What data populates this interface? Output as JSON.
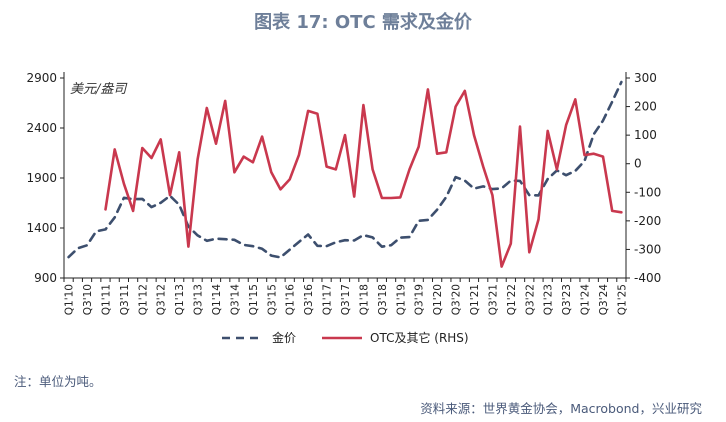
{
  "title": "图表 17: OTC 需求及金价",
  "note": "注：单位为吨。",
  "source": "资料来源：世界黄金协会，Macrobond，兴业研究",
  "chart_data": {
    "type": "line",
    "unit_label": "美元/盎司",
    "categories": [
      "Q1'10",
      "Q2'10",
      "Q3'10",
      "Q4'10",
      "Q1'11",
      "Q2'11",
      "Q3'11",
      "Q4'11",
      "Q1'12",
      "Q2'12",
      "Q3'12",
      "Q4'12",
      "Q1'13",
      "Q2'13",
      "Q3'13",
      "Q4'13",
      "Q1'14",
      "Q2'14",
      "Q3'14",
      "Q4'14",
      "Q1'15",
      "Q2'15",
      "Q3'15",
      "Q4'15",
      "Q1'16",
      "Q2'16",
      "Q3'16",
      "Q4'16",
      "Q1'17",
      "Q2'17",
      "Q3'17",
      "Q4'17",
      "Q1'18",
      "Q2'18",
      "Q3'18",
      "Q4'18",
      "Q1'19",
      "Q2'19",
      "Q3'19",
      "Q4'19",
      "Q1'20",
      "Q2'20",
      "Q3'20",
      "Q4'20",
      "Q1'21",
      "Q2'21",
      "Q3'21",
      "Q4'21",
      "Q1'22",
      "Q2'22",
      "Q3'22",
      "Q4'22",
      "Q1'23",
      "Q2'23",
      "Q3'23",
      "Q4'23",
      "Q1'24",
      "Q2'24",
      "Q3'24",
      "Q4'24",
      "Q1'25"
    ],
    "x_tick_labels": [
      "Q1'10",
      "Q3'10",
      "Q1'11",
      "Q3'11",
      "Q1'12",
      "Q3'12",
      "Q1'13",
      "Q3'13",
      "Q1'14",
      "Q3'14",
      "Q1'15",
      "Q3'15",
      "Q1'16",
      "Q3'16",
      "Q1'17",
      "Q3'17",
      "Q1'18",
      "Q3'18",
      "Q1'19",
      "Q3'19",
      "Q1'20",
      "Q3'20",
      "Q1'21",
      "Q3'21",
      "Q1'22",
      "Q3'22",
      "Q1'23",
      "Q3'23",
      "Q1'24",
      "Q3'24",
      "Q1'25"
    ],
    "y_left": {
      "label": "美元/盎司",
      "min": 900,
      "max": 2900,
      "ticks": [
        900,
        1400,
        1900,
        2400,
        2900
      ]
    },
    "y_right": {
      "label": "RHS",
      "min": -400,
      "max": 300,
      "ticks": [
        -400,
        -300,
        -200,
        -100,
        0,
        100,
        200,
        300
      ]
    },
    "series": [
      {
        "name": "金价",
        "axis": "left",
        "color": "#3d4f6e",
        "dash": true,
        "values": [
          1109,
          1197,
          1227,
          1367,
          1386,
          1506,
          1702,
          1688,
          1691,
          1609,
          1652,
          1722,
          1632,
          1415,
          1326,
          1272,
          1293,
          1288,
          1282,
          1231,
          1218,
          1192,
          1124,
          1106,
          1183,
          1260,
          1335,
          1222,
          1219,
          1257,
          1278,
          1275,
          1329,
          1306,
          1213,
          1228,
          1304,
          1309,
          1472,
          1481,
          1583,
          1711,
          1909,
          1874,
          1794,
          1816,
          1789,
          1796,
          1874,
          1871,
          1729,
          1726,
          1890,
          1976,
          1928,
          1971,
          2070,
          2338,
          2474,
          2663,
          2860
        ]
      },
      {
        "name": "OTC及其它 (RHS)",
        "axis": "right",
        "color": "#c9384e",
        "dash": false,
        "values": [
          null,
          null,
          null,
          null,
          -160,
          50,
          -70,
          -165,
          55,
          20,
          85,
          -110,
          40,
          -290,
          15,
          195,
          70,
          220,
          -30,
          25,
          5,
          95,
          -30,
          -90,
          -55,
          30,
          185,
          175,
          -10,
          -20,
          100,
          -115,
          205,
          -20,
          -120,
          -120,
          -118,
          -20,
          60,
          260,
          35,
          40,
          200,
          255,
          100,
          -10,
          -110,
          -360,
          -280,
          130,
          -310,
          -195,
          115,
          -20,
          135,
          225,
          30,
          35,
          25,
          -165,
          -170
        ]
      }
    ],
    "legend": {
      "position": "bottom",
      "entries": [
        "金价",
        "OTC及其它 (RHS)"
      ]
    }
  }
}
